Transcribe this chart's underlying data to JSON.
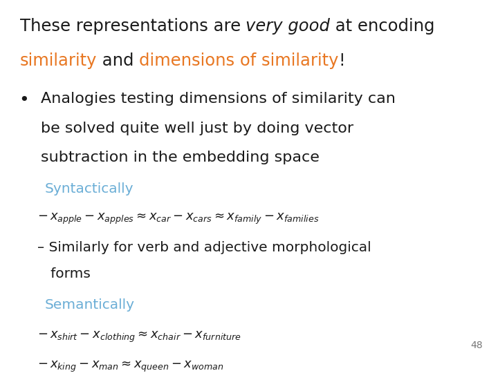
{
  "bg_color": "#ffffff",
  "orange_color": "#E87722",
  "blue_color": "#6BAED6",
  "black_color": "#1a1a1a",
  "page_number": "48",
  "bullet_text_line1": "Analogies testing dimensions of similarity can",
  "bullet_text_line2": "be solved quite well just by doing vector",
  "bullet_text_line3": "subtraction in the embedding space",
  "syntactically_label": "Syntactically",
  "syntactically_color": "#6BAED6",
  "semantically_label": "Semantically",
  "semantically_color": "#6BAED6",
  "math_verb_line1": "– Similarly for verb and adjective morphological",
  "math_verb_line2": "   forms",
  "fs_title": 17.5,
  "fs_bullet": 16,
  "fs_sub": 14.5,
  "fs_math": 13,
  "fs_label": 14.5,
  "fs_page": 10
}
